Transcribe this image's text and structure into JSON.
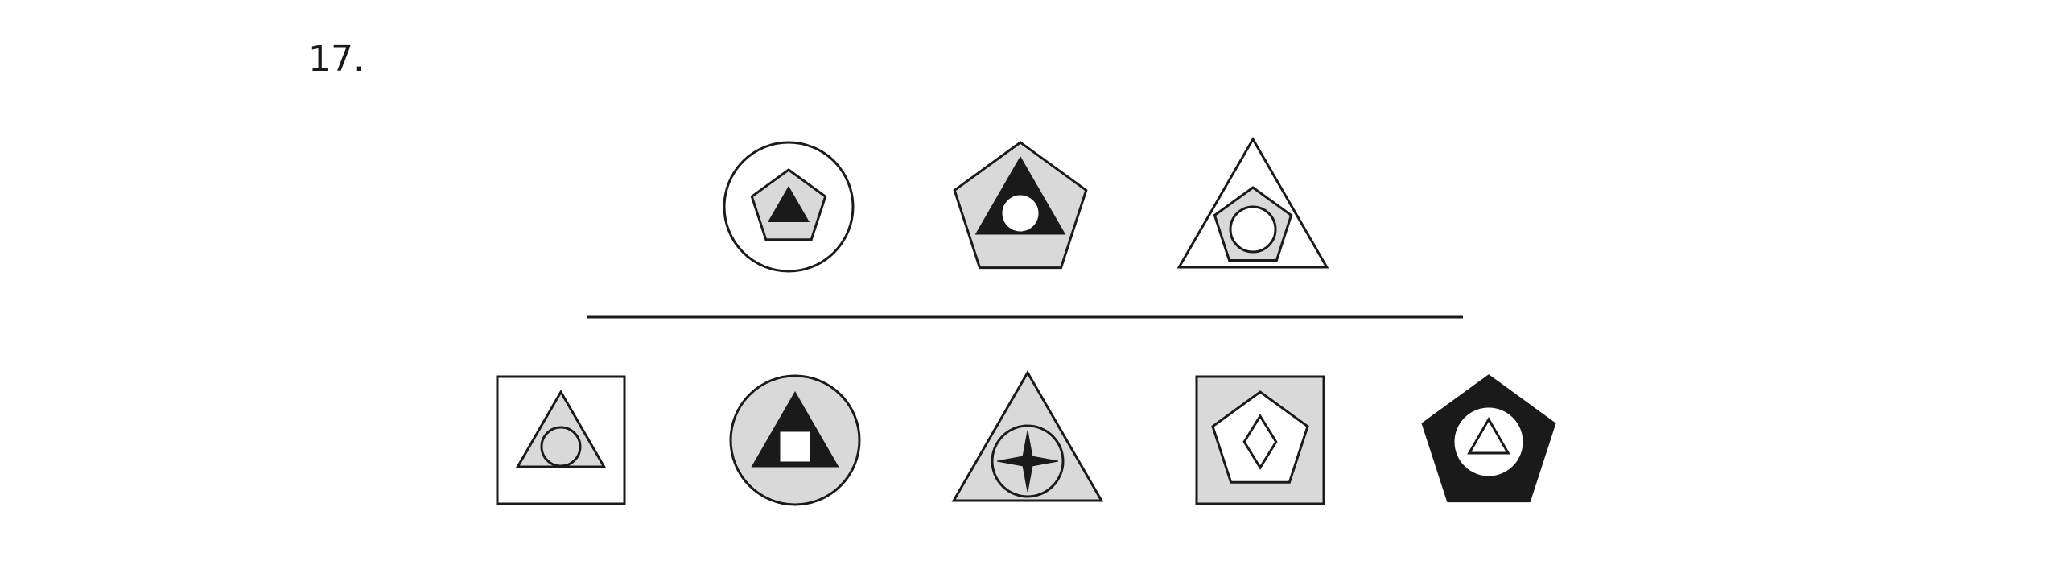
{
  "problem": {
    "label": "17."
  },
  "colors": {
    "stroke": "#1a1a1a",
    "light_gray": "#d9d9d9",
    "dark": "#1a1a1a",
    "white": "#ffffff"
  },
  "top_row": [
    {
      "outer": "circle",
      "outer_fill": "white",
      "middle": "pentagon",
      "middle_fill": "light_gray",
      "inner": "triangle",
      "inner_fill": "dark"
    },
    {
      "outer": "pentagon",
      "outer_fill": "light_gray",
      "middle": "triangle",
      "middle_fill": "dark",
      "inner": "circle",
      "inner_fill": "white"
    },
    {
      "outer": "triangle",
      "outer_fill": "white",
      "middle": "pentagon",
      "middle_fill": "light_gray",
      "inner": "circle",
      "inner_fill": "white"
    }
  ],
  "answer_options": [
    {
      "outer": "square",
      "outer_fill": "white",
      "middle": "triangle",
      "middle_fill": "light_gray",
      "inner": "circle",
      "inner_fill": "light_gray"
    },
    {
      "outer": "circle",
      "outer_fill": "light_gray",
      "middle": "triangle",
      "middle_fill": "dark",
      "inner": "square",
      "inner_fill": "white"
    },
    {
      "outer": "triangle",
      "outer_fill": "light_gray",
      "middle": "circle",
      "middle_fill": "light_gray",
      "inner": "four-point-star",
      "inner_fill": "dark"
    },
    {
      "outer": "square",
      "outer_fill": "light_gray",
      "middle": "pentagon",
      "middle_fill": "white",
      "inner": "diamond",
      "inner_fill": "white"
    },
    {
      "outer": "pentagon",
      "outer_fill": "dark",
      "middle": "circle",
      "middle_fill": "white",
      "inner": "triangle",
      "inner_fill": "white"
    }
  ]
}
